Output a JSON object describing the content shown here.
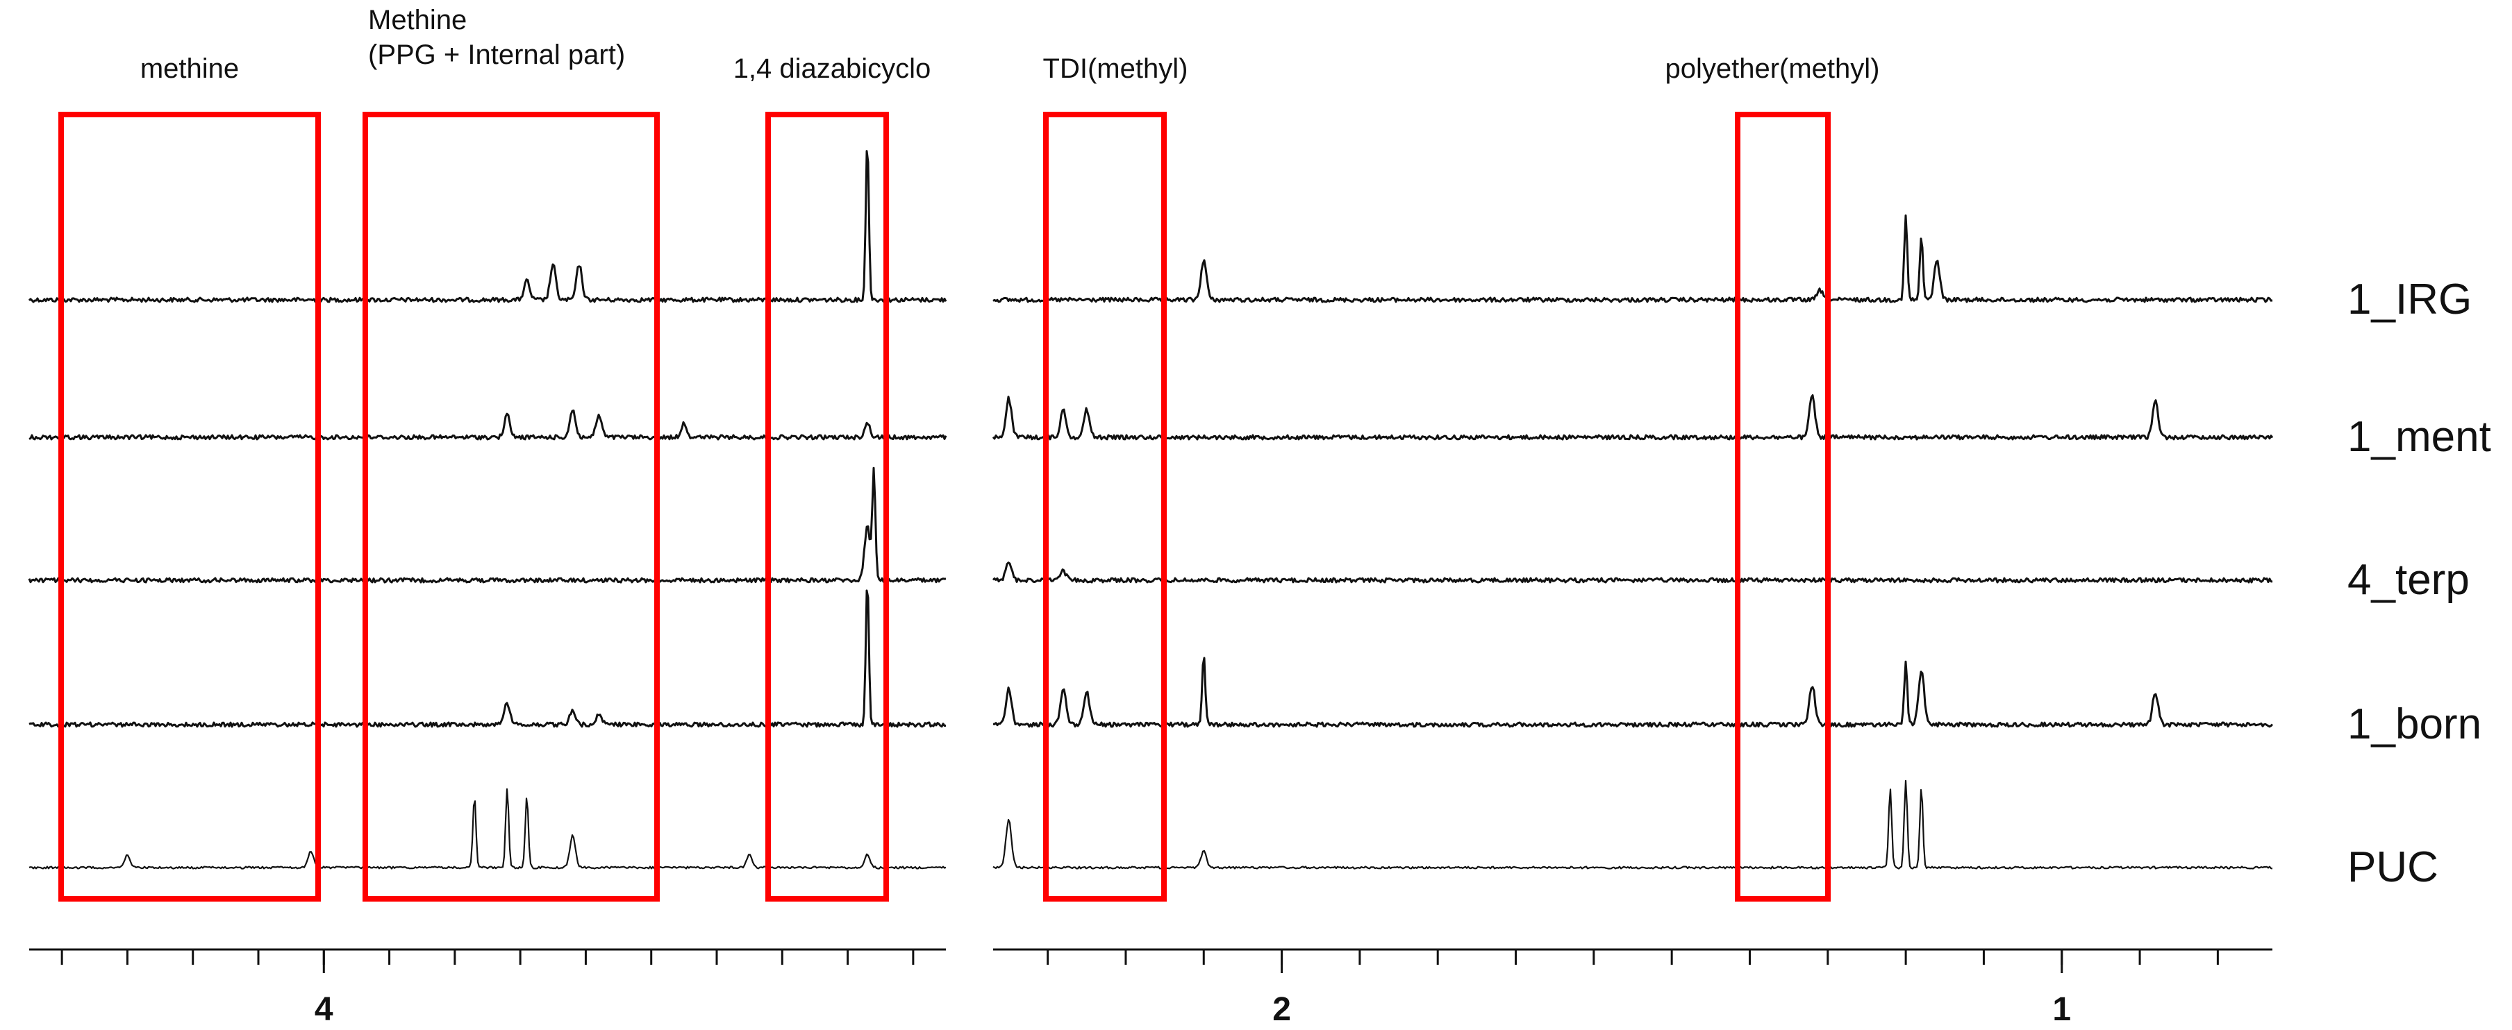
{
  "chart_data": {
    "type": "line",
    "title": "",
    "xlabel": "",
    "ylabel": "",
    "x_axis": {
      "reversed": true,
      "broken": true,
      "ticks": [
        "4",
        "2",
        "1"
      ]
    },
    "series": [
      {
        "name": "1_IRG",
        "peaks": [
          {
            "ppm": 3.65,
            "h": 0.22
          },
          {
            "ppm": 3.61,
            "h": 0.22
          },
          {
            "ppm": 3.69,
            "h": 0.12
          },
          {
            "ppm": 3.17,
            "h": 1.0
          },
          {
            "ppm": 2.1,
            "h": 0.25
          },
          {
            "ppm": 1.2,
            "h": 0.52
          },
          {
            "ppm": 1.18,
            "h": 0.4
          },
          {
            "ppm": 1.16,
            "h": 0.25
          },
          {
            "ppm": 1.31,
            "h": 0.06
          }
        ]
      },
      {
        "name": "1_ment",
        "peaks": [
          {
            "ppm": 3.72,
            "h": 0.08
          },
          {
            "ppm": 3.62,
            "h": 0.1
          },
          {
            "ppm": 3.58,
            "h": 0.08
          },
          {
            "ppm": 3.45,
            "h": 0.05
          },
          {
            "ppm": 3.17,
            "h": 0.05
          },
          {
            "ppm": 2.35,
            "h": 0.14
          },
          {
            "ppm": 2.28,
            "h": 0.1
          },
          {
            "ppm": 2.25,
            "h": 0.1
          },
          {
            "ppm": 1.32,
            "h": 0.15
          },
          {
            "ppm": 0.88,
            "h": 0.13
          }
        ]
      },
      {
        "name": "4_terp",
        "peaks": [
          {
            "ppm": 3.16,
            "h": 0.6
          },
          {
            "ppm": 3.17,
            "h": 0.3
          },
          {
            "ppm": 2.35,
            "h": 0.1
          },
          {
            "ppm": 2.28,
            "h": 0.05
          }
        ]
      },
      {
        "name": "1_born",
        "peaks": [
          {
            "ppm": 3.72,
            "h": 0.12
          },
          {
            "ppm": 3.62,
            "h": 0.08
          },
          {
            "ppm": 3.58,
            "h": 0.06
          },
          {
            "ppm": 3.17,
            "h": 0.8
          },
          {
            "ppm": 2.35,
            "h": 0.2
          },
          {
            "ppm": 2.28,
            "h": 0.2
          },
          {
            "ppm": 2.25,
            "h": 0.18
          },
          {
            "ppm": 2.1,
            "h": 0.38
          },
          {
            "ppm": 1.32,
            "h": 0.22
          },
          {
            "ppm": 1.2,
            "h": 0.35
          },
          {
            "ppm": 1.18,
            "h": 0.3
          },
          {
            "ppm": 0.88,
            "h": 0.18
          }
        ]
      },
      {
        "name": "PUC",
        "peaks": [
          {
            "ppm": 4.3,
            "h": 0.08
          },
          {
            "ppm": 4.02,
            "h": 0.1
          },
          {
            "ppm": 3.77,
            "h": 0.45
          },
          {
            "ppm": 3.72,
            "h": 0.5
          },
          {
            "ppm": 3.69,
            "h": 0.45
          },
          {
            "ppm": 3.62,
            "h": 0.2
          },
          {
            "ppm": 3.35,
            "h": 0.08
          },
          {
            "ppm": 3.17,
            "h": 0.08
          },
          {
            "ppm": 2.35,
            "h": 0.3
          },
          {
            "ppm": 2.1,
            "h": 0.1
          },
          {
            "ppm": 1.22,
            "h": 0.5
          },
          {
            "ppm": 1.2,
            "h": 0.55
          },
          {
            "ppm": 1.18,
            "h": 0.5
          }
        ]
      }
    ],
    "regions": [
      {
        "label": "methine"
      },
      {
        "label": "Methine\n(PPG + Internal part)"
      },
      {
        "label": "1,4 diazabicyclo"
      },
      {
        "label": "TDI(methyl)"
      },
      {
        "label": "polyether(methyl)"
      }
    ],
    "grid": false,
    "legend": "right"
  }
}
